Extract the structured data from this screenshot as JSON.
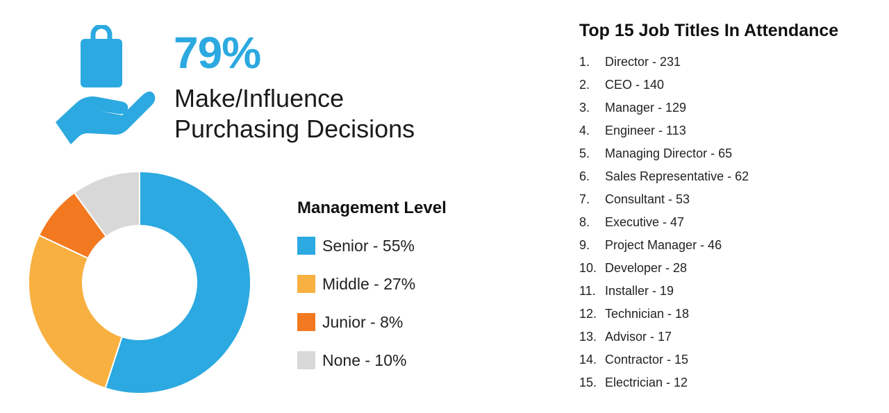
{
  "stat": {
    "percent": "79%",
    "caption_line1": "Make/Influence",
    "caption_line2": "Purchasing Decisions",
    "icon": "hand-holding-bag-icon",
    "accent_color": "#2ba9e0"
  },
  "chart_data": {
    "type": "pie",
    "donut": true,
    "title": "Management Level",
    "slices": [
      {
        "label": "Senior - 55%",
        "name": "Senior",
        "value": 55,
        "color": "#2ba9e0"
      },
      {
        "label": "Middle - 27%",
        "name": "Middle",
        "value": 27,
        "color": "#f8b040"
      },
      {
        "label": "Junior - 8%",
        "name": "Junior",
        "value": 8,
        "color": "#f37920"
      },
      {
        "label": "None - 10%",
        "name": "None",
        "value": 10,
        "color": "#d8d8d8"
      }
    ],
    "legend_position": "right"
  },
  "jobs": {
    "title": "Top 15 Job Titles In Attendance",
    "items": [
      {
        "num": "1.",
        "text": "Director - 231"
      },
      {
        "num": "2.",
        "text": "CEO - 140"
      },
      {
        "num": "3.",
        "text": "Manager - 129"
      },
      {
        "num": "4.",
        "text": "Engineer - 113"
      },
      {
        "num": "5.",
        "text": "Managing Director - 65"
      },
      {
        "num": "6.",
        "text": "Sales Representative - 62"
      },
      {
        "num": "7.",
        "text": "Consultant - 53"
      },
      {
        "num": "8.",
        "text": "Executive - 47"
      },
      {
        "num": "9.",
        "text": "Project Manager - 46"
      },
      {
        "num": "10.",
        "text": "Developer - 28"
      },
      {
        "num": "11.",
        "text": "Installer - 19"
      },
      {
        "num": "12.",
        "text": "Technician - 18"
      },
      {
        "num": "13.",
        "text": "Advisor - 17"
      },
      {
        "num": "14.",
        "text": "Contractor - 15"
      },
      {
        "num": "15.",
        "text": "Electrician - 12"
      }
    ]
  }
}
